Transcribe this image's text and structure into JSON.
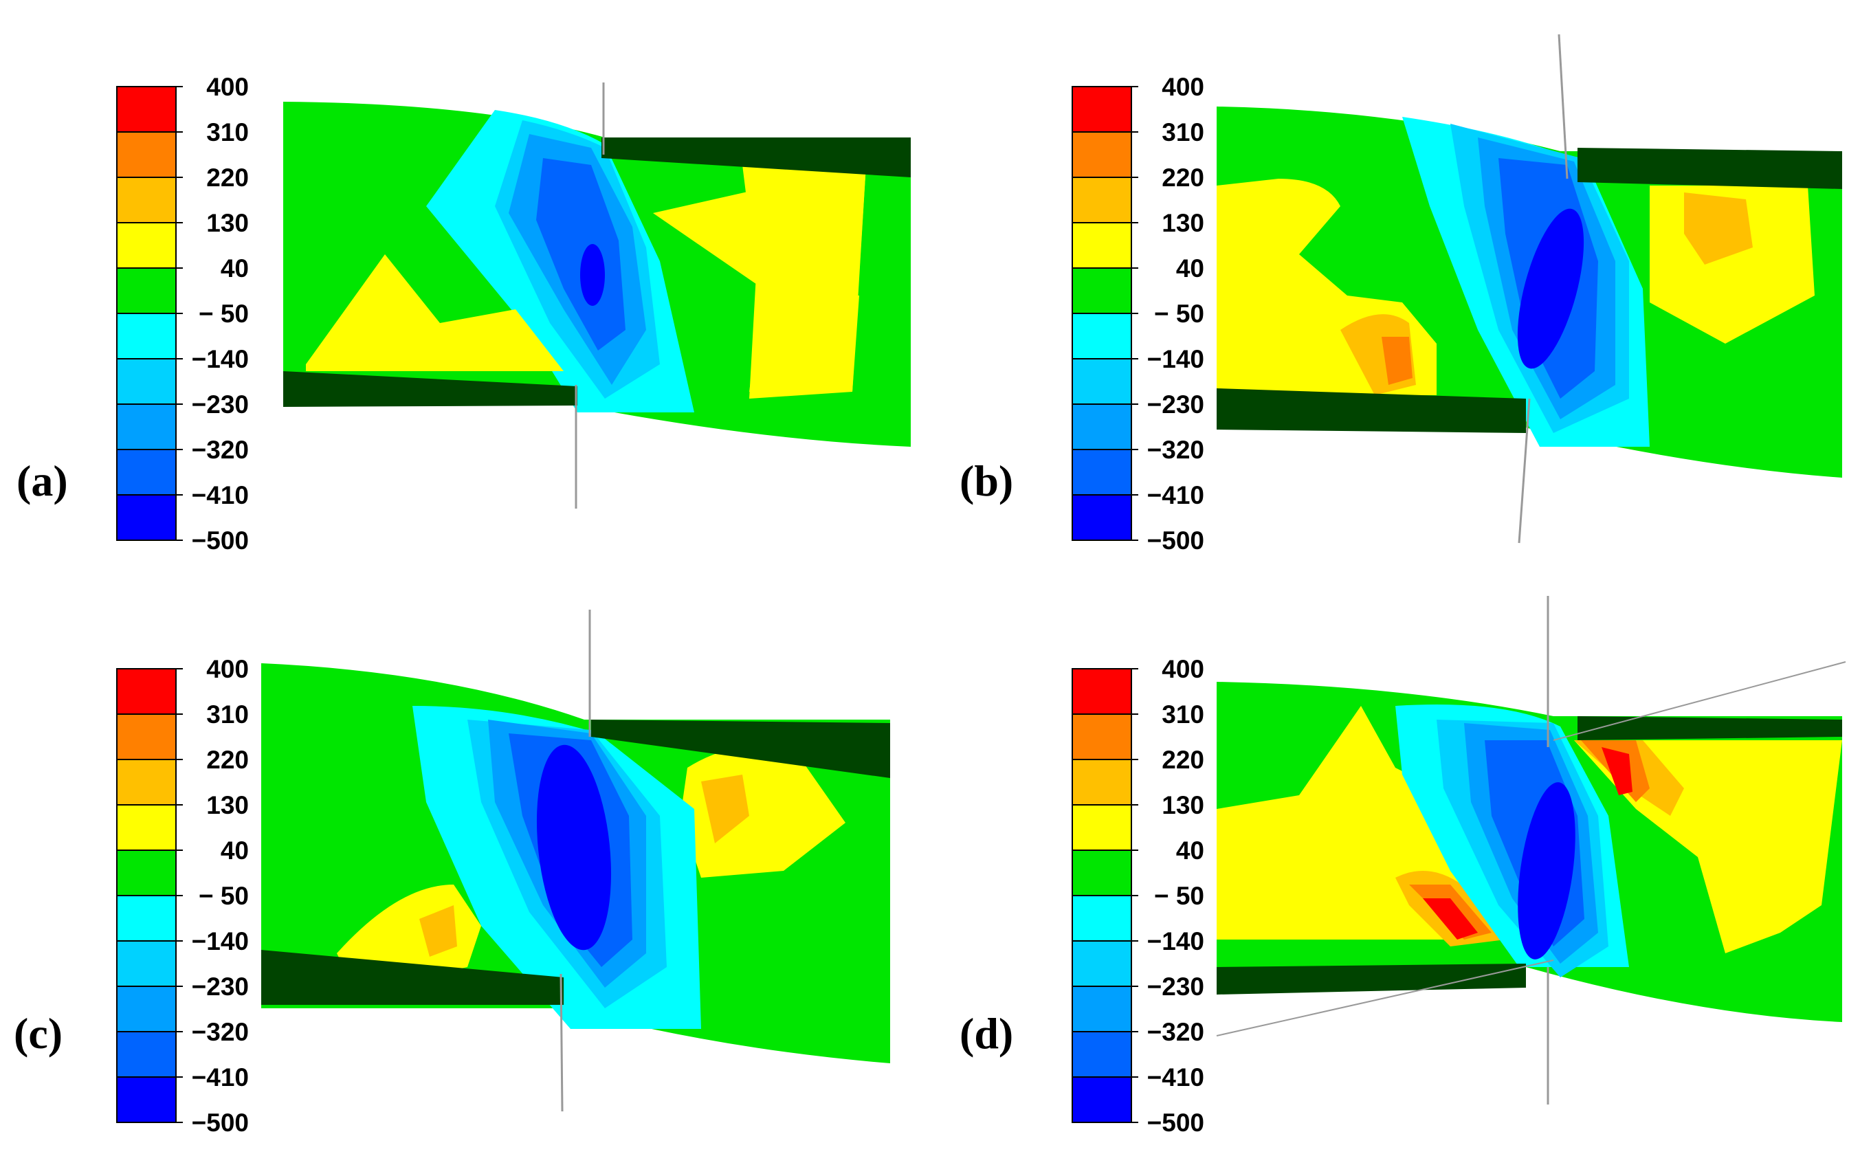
{
  "colorbar": {
    "ticks": [
      "400",
      "310",
      "220",
      "130",
      "40",
      "− 50",
      "−140",
      "−230",
      "−320",
      "−410",
      "−500"
    ],
    "colors": [
      "#ff0000",
      "#ff8000",
      "#ffc000",
      "#ffff00",
      "#00e600",
      "#00ffff",
      "#00d2ff",
      "#00a0ff",
      "#0064ff",
      "#0000ff"
    ]
  },
  "panels": [
    {
      "id": "a",
      "label": "(a)"
    },
    {
      "id": "b",
      "label": "(b)"
    },
    {
      "id": "c",
      "label": "(c)"
    },
    {
      "id": "d",
      "label": "(d)"
    }
  ],
  "materials": {
    "dark_part": "#004400",
    "outline": "#000000",
    "guide_line": "#999999"
  }
}
